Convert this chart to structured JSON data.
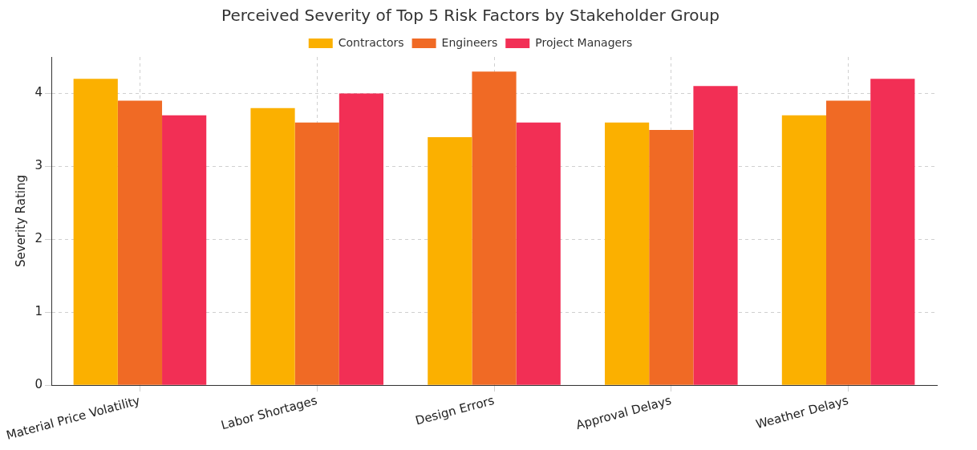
{
  "chart_data": {
    "type": "bar",
    "title": "Perceived Severity of Top 5 Risk Factors by Stakeholder Group",
    "ylabel": "Severity Rating",
    "categories": [
      "Material Price Volatility",
      "Labor Shortages",
      "Design Errors",
      "Approval Delays",
      "Weather Delays"
    ],
    "series": [
      {
        "name": "Contractors",
        "color": "#fbb000",
        "values": [
          4.2,
          3.8,
          3.4,
          3.6,
          3.7
        ]
      },
      {
        "name": "Engineers",
        "color": "#f06a25",
        "values": [
          3.9,
          3.6,
          4.3,
          3.5,
          3.9
        ]
      },
      {
        "name": "Project Managers",
        "color": "#f22f55",
        "values": [
          3.7,
          4.0,
          3.6,
          4.1,
          4.2
        ]
      }
    ],
    "ylim": [
      0,
      4.5
    ],
    "yticks": [
      0,
      1,
      2,
      3,
      4
    ],
    "grid": true,
    "legend": "top"
  }
}
